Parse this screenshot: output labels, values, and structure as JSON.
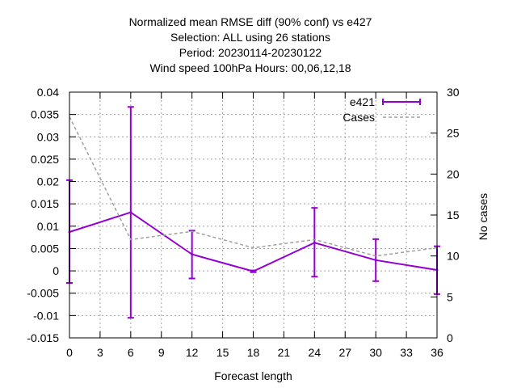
{
  "chart_data": {
    "type": "line",
    "title_lines": [
      "Normalized mean RMSE diff (90% conf) vs e427",
      "Selection: ALL using    26 stations",
      "Period: 20230114-20230122",
      "Wind speed 100hPa   Hours:  00,06,12,18"
    ],
    "xlabel": "Forecast length",
    "ylabel": "",
    "y2label": "No cases",
    "xlim": [
      0,
      36
    ],
    "ylim": [
      -0.015,
      0.04
    ],
    "y2lim": [
      0,
      30
    ],
    "x_ticks": [
      0,
      3,
      6,
      9,
      12,
      15,
      18,
      21,
      24,
      27,
      30,
      33,
      36
    ],
    "y_ticks": [
      -0.015,
      -0.01,
      -0.005,
      0,
      0.005,
      0.01,
      0.015,
      0.02,
      0.025,
      0.03,
      0.035,
      0.04
    ],
    "y_tick_labels": [
      "-0.015",
      "-0.01",
      "-0.005",
      "0",
      "0.005",
      "0.01",
      "0.015",
      "0.02",
      "0.025",
      "0.03",
      "0.035",
      "0.04"
    ],
    "y2_ticks": [
      0,
      5,
      10,
      15,
      20,
      25,
      30
    ],
    "grid": true,
    "legend_position": "top-right",
    "series": [
      {
        "name": "e421",
        "axis": "y",
        "color": "#9400d3",
        "style": "solid",
        "x": [
          0,
          6,
          12,
          18,
          24,
          30,
          36
        ],
        "values": [
          0.0087,
          0.0131,
          0.0037,
          -0.0001,
          0.0063,
          0.0024,
          0.0002
        ],
        "err_low": [
          -0.0027,
          -0.0105,
          -0.0017,
          -0.0003,
          -0.0013,
          -0.0023,
          -0.0052
        ],
        "err_high": [
          0.0203,
          0.0367,
          0.009,
          0.0001,
          0.0141,
          0.0071,
          0.0055
        ]
      },
      {
        "name": "Cases",
        "axis": "y2",
        "color": "#a0a0a0",
        "style": "dashed",
        "x": [
          0,
          6,
          12,
          18,
          24,
          30,
          36
        ],
        "values": [
          27,
          12,
          13,
          11,
          12,
          10,
          11
        ]
      }
    ]
  }
}
